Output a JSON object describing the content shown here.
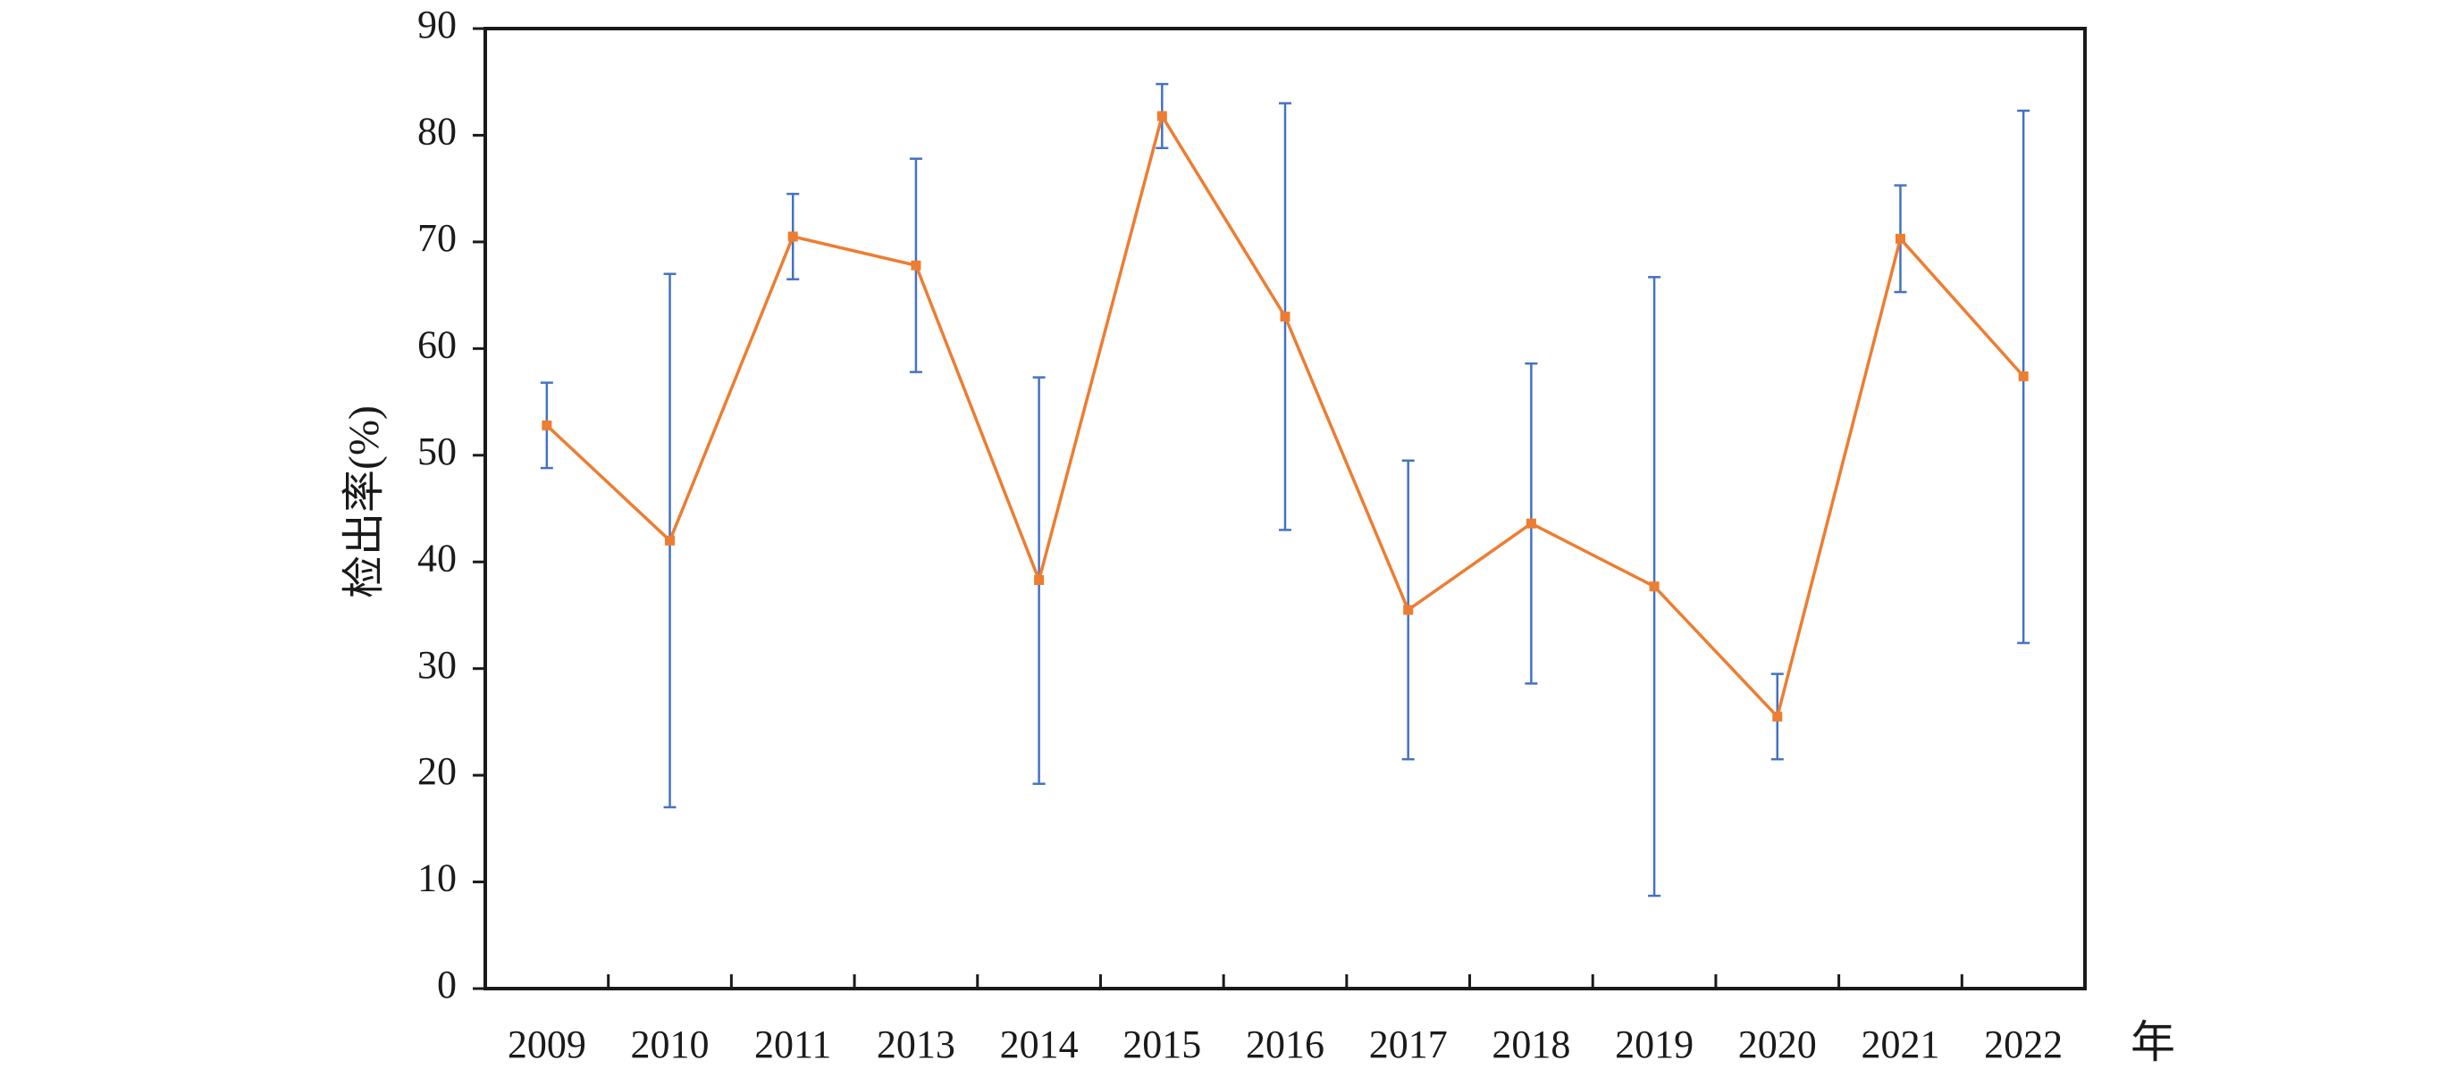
{
  "chart_data": {
    "type": "line",
    "title": "",
    "xlabel": "年",
    "ylabel": "检出率(%)",
    "ylim": [
      0,
      90
    ],
    "yticks": [
      0,
      10,
      20,
      30,
      40,
      50,
      60,
      70,
      80,
      90
    ],
    "grid": false,
    "categories": [
      "2009",
      "2010",
      "2011",
      "2013",
      "2014",
      "2015",
      "2016",
      "2017",
      "2018",
      "2019",
      "2020",
      "2021",
      "2022"
    ],
    "series": [
      {
        "values": [
          52.8,
          42.0,
          70.5,
          67.8,
          38.3,
          81.8,
          63.0,
          35.5,
          43.6,
          37.7,
          25.5,
          70.3,
          57.4
        ],
        "error_low": [
          48.8,
          17.0,
          66.5,
          57.8,
          19.2,
          78.8,
          43.0,
          21.5,
          28.6,
          8.7,
          21.5,
          65.3,
          32.4
        ],
        "error_high": [
          56.8,
          67.0,
          74.5,
          77.8,
          57.3,
          84.8,
          83.0,
          49.5,
          58.6,
          66.7,
          29.5,
          75.3,
          82.3
        ],
        "line_color": "#ED7D31",
        "error_color": "#4472C4"
      }
    ]
  }
}
